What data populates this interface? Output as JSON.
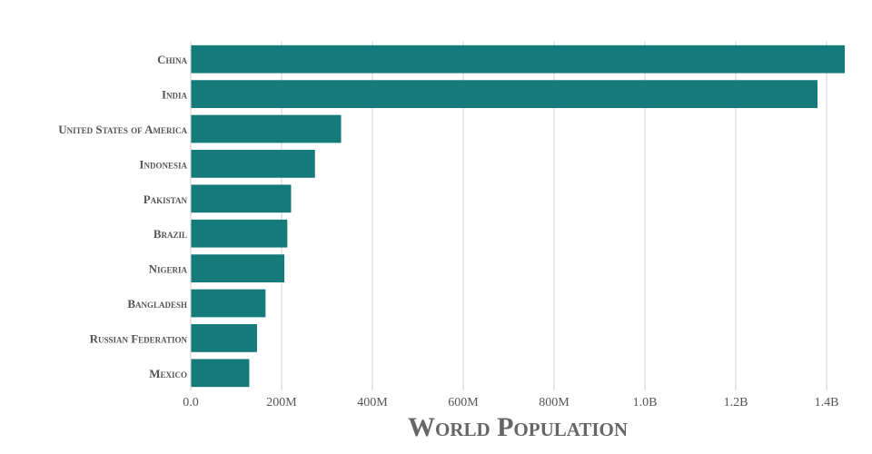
{
  "chart_data": {
    "type": "bar",
    "orientation": "horizontal",
    "categories": [
      "China",
      "India",
      "United States of America",
      "Indonesia",
      "Pakistan",
      "Brazil",
      "Nigeria",
      "Bangladesh",
      "Russian Federation",
      "Mexico"
    ],
    "values": [
      1440000000,
      1380000000,
      331000000,
      273500000,
      220900000,
      212600000,
      206100000,
      164700000,
      145900000,
      128900000
    ],
    "xlabel": "World Population",
    "xlim": [
      0,
      1440000000
    ],
    "x_ticks": [
      0,
      200000000,
      400000000,
      600000000,
      800000000,
      1000000000,
      1200000000,
      1400000000
    ],
    "x_tick_labels": [
      "0.0",
      "200M",
      "400M",
      "600M",
      "800M",
      "1.0B",
      "1.2B",
      "1.4B"
    ],
    "grid": "vertical",
    "colors": {
      "bar": "#147a7a",
      "grid": "#d0d0d0",
      "text": "#555555"
    }
  }
}
